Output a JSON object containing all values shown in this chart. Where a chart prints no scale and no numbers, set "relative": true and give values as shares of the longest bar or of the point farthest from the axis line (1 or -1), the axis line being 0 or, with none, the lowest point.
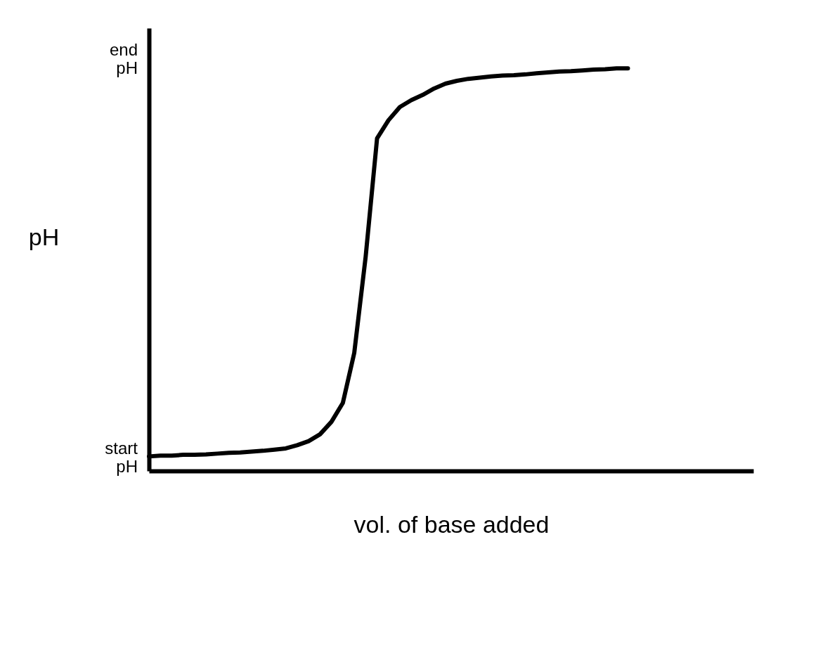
{
  "chart_data": {
    "type": "line",
    "relative": true,
    "xlabel": "vol. of base added",
    "ylabel": "pH",
    "categories": [
      null,
      null,
      null,
      null,
      null,
      null,
      null,
      null,
      null,
      null,
      null,
      null,
      null,
      null,
      null,
      null,
      null,
      null,
      null,
      null,
      null,
      null,
      null,
      null,
      null,
      null,
      null,
      null,
      null,
      null,
      null,
      null,
      null,
      null,
      null,
      null,
      null,
      null,
      null,
      null,
      null,
      null,
      null,
      null,
      null,
      null,
      null,
      null,
      null,
      null,
      null,
      null,
      null,
      null
    ],
    "series": [
      {
        "color": "#000000",
        "values": [
          0.036,
          0.038,
          0.038,
          0.04,
          0.04,
          0.041,
          0.043,
          0.045,
          0.046,
          0.048,
          0.05,
          0.053,
          0.056,
          0.064,
          0.074,
          0.091,
          0.122,
          0.169,
          0.293,
          0.532,
          0.826,
          0.871,
          0.904,
          0.921,
          0.934,
          0.95,
          0.962,
          0.969,
          0.974,
          0.977,
          0.98,
          0.982,
          0.983,
          0.985,
          0.988,
          0.99,
          0.992,
          0.993,
          0.995,
          0.997,
          0.998,
          1,
          1,
          null,
          null,
          null,
          null,
          null,
          null,
          null,
          null,
          null,
          null,
          null
        ]
      }
    ],
    "annotations": [
      "end pH",
      "start pH"
    ],
    "grid": false,
    "marker": "none",
    "line_style": "solid"
  }
}
